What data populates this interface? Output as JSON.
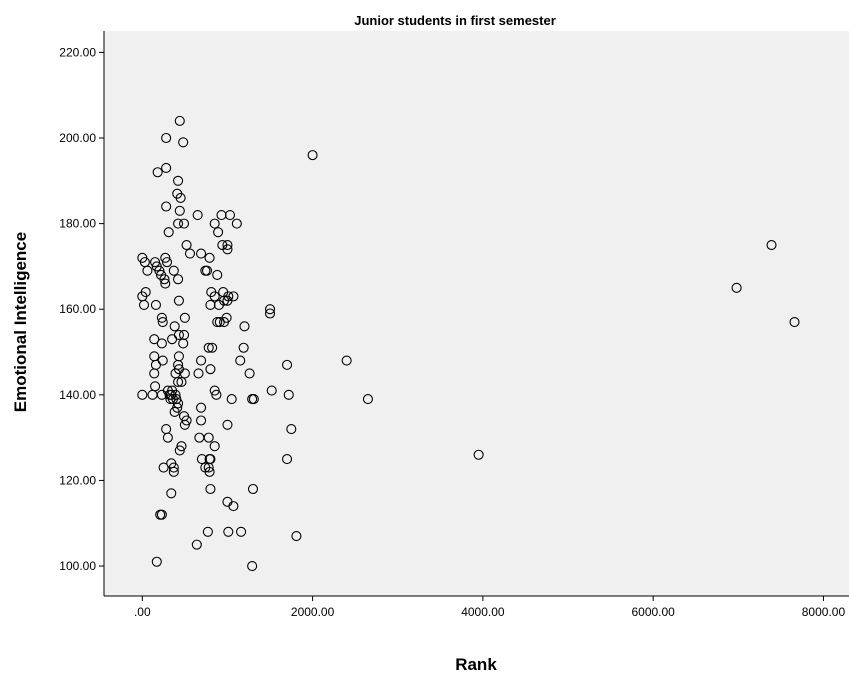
{
  "colors": {
    "plot_background": "#f0f0f0",
    "marker_stroke": "#000000",
    "marker_fill": "none"
  },
  "chart_data": {
    "type": "scatter",
    "title": "Junior students in first semester",
    "xlabel": "Rank",
    "ylabel": "Emotional Intelligence",
    "xlim": [
      -450,
      8300
    ],
    "ylim": [
      93,
      225
    ],
    "x_ticks": [
      {
        "value": 0,
        "label": ".00"
      },
      {
        "value": 2000,
        "label": "2000.00"
      },
      {
        "value": 4000,
        "label": "4000.00"
      },
      {
        "value": 6000,
        "label": "6000.00"
      },
      {
        "value": 8000,
        "label": "8000.00"
      }
    ],
    "y_ticks": [
      {
        "value": 100,
        "label": "100.00"
      },
      {
        "value": 120,
        "label": "120.00"
      },
      {
        "value": 140,
        "label": "140.00"
      },
      {
        "value": 160,
        "label": "160.00"
      },
      {
        "value": 180,
        "label": "180.00"
      },
      {
        "value": 200,
        "label": "200.00"
      },
      {
        "value": 220,
        "label": "220.00"
      }
    ],
    "grid": false,
    "legend": "none",
    "marker": "open-circle",
    "points": [
      [
        440,
        204
      ],
      [
        280,
        200
      ],
      [
        480,
        199
      ],
      [
        2000,
        196
      ],
      [
        280,
        193
      ],
      [
        180,
        192
      ],
      [
        420,
        190
      ],
      [
        410,
        187
      ],
      [
        450,
        186
      ],
      [
        280,
        184
      ],
      [
        440,
        183
      ],
      [
        650,
        182
      ],
      [
        930,
        182
      ],
      [
        1030,
        182
      ],
      [
        420,
        180
      ],
      [
        490,
        180
      ],
      [
        850,
        180
      ],
      [
        1110,
        180
      ],
      [
        310,
        178
      ],
      [
        890,
        178
      ],
      [
        520,
        175
      ],
      [
        940,
        175
      ],
      [
        1000,
        175
      ],
      [
        1000,
        174
      ],
      [
        560,
        173
      ],
      [
        690,
        173
      ],
      [
        0,
        172
      ],
      [
        270,
        172
      ],
      [
        790,
        172
      ],
      [
        30,
        171
      ],
      [
        150,
        171
      ],
      [
        290,
        171
      ],
      [
        170,
        170
      ],
      [
        60,
        169
      ],
      [
        200,
        169
      ],
      [
        370,
        169
      ],
      [
        740,
        169
      ],
      [
        760,
        169
      ],
      [
        220,
        168
      ],
      [
        880,
        168
      ],
      [
        260,
        167
      ],
      [
        420,
        167
      ],
      [
        270,
        166
      ],
      [
        40,
        164
      ],
      [
        810,
        164
      ],
      [
        950,
        164
      ],
      [
        0,
        163
      ],
      [
        850,
        163
      ],
      [
        1010,
        163
      ],
      [
        1070,
        163
      ],
      [
        430,
        162
      ],
      [
        960,
        162
      ],
      [
        1000,
        162
      ],
      [
        1500,
        160
      ],
      [
        20,
        161
      ],
      [
        160,
        161
      ],
      [
        800,
        161
      ],
      [
        900,
        161
      ],
      [
        1500,
        159
      ],
      [
        230,
        158
      ],
      [
        500,
        158
      ],
      [
        990,
        158
      ],
      [
        240,
        157
      ],
      [
        880,
        157
      ],
      [
        910,
        157
      ],
      [
        960,
        157
      ],
      [
        7660,
        157
      ],
      [
        380,
        156
      ],
      [
        1200,
        156
      ],
      [
        430,
        154
      ],
      [
        490,
        154
      ],
      [
        140,
        153
      ],
      [
        350,
        153
      ],
      [
        230,
        152
      ],
      [
        480,
        152
      ],
      [
        780,
        151
      ],
      [
        820,
        151
      ],
      [
        1190,
        151
      ],
      [
        140,
        149
      ],
      [
        430,
        149
      ],
      [
        240,
        148
      ],
      [
        690,
        148
      ],
      [
        1150,
        148
      ],
      [
        2400,
        148
      ],
      [
        160,
        147
      ],
      [
        420,
        147
      ],
      [
        1700,
        147
      ],
      [
        430,
        146
      ],
      [
        800,
        146
      ],
      [
        140,
        145
      ],
      [
        390,
        145
      ],
      [
        500,
        145
      ],
      [
        660,
        145
      ],
      [
        1260,
        145
      ],
      [
        420,
        143
      ],
      [
        460,
        143
      ],
      [
        150,
        142
      ],
      [
        300,
        141
      ],
      [
        350,
        141
      ],
      [
        850,
        141
      ],
      [
        1520,
        141
      ],
      [
        0,
        140
      ],
      [
        120,
        140
      ],
      [
        230,
        140
      ],
      [
        320,
        140
      ],
      [
        340,
        140
      ],
      [
        390,
        140
      ],
      [
        870,
        140
      ],
      [
        1720,
        140
      ],
      [
        330,
        139
      ],
      [
        360,
        139
      ],
      [
        400,
        139
      ],
      [
        1050,
        139
      ],
      [
        1290,
        139
      ],
      [
        1310,
        139
      ],
      [
        2650,
        139
      ],
      [
        420,
        138
      ],
      [
        410,
        137
      ],
      [
        690,
        137
      ],
      [
        380,
        136
      ],
      [
        490,
        135
      ],
      [
        520,
        134
      ],
      [
        690,
        134
      ],
      [
        500,
        133
      ],
      [
        1000,
        133
      ],
      [
        280,
        132
      ],
      [
        1750,
        132
      ],
      [
        300,
        130
      ],
      [
        670,
        130
      ],
      [
        780,
        130
      ],
      [
        460,
        128
      ],
      [
        850,
        128
      ],
      [
        440,
        127
      ],
      [
        3950,
        126
      ],
      [
        700,
        125
      ],
      [
        790,
        125
      ],
      [
        800,
        125
      ],
      [
        1700,
        125
      ],
      [
        340,
        124
      ],
      [
        370,
        123
      ],
      [
        250,
        123
      ],
      [
        740,
        123
      ],
      [
        780,
        123
      ],
      [
        790,
        122
      ],
      [
        370,
        122
      ],
      [
        800,
        118
      ],
      [
        1300,
        118
      ],
      [
        340,
        117
      ],
      [
        1000,
        115
      ],
      [
        1070,
        114
      ],
      [
        210,
        112
      ],
      [
        230,
        112
      ],
      [
        770,
        108
      ],
      [
        1010,
        108
      ],
      [
        1160,
        108
      ],
      [
        1810,
        107
      ],
      [
        640,
        105
      ],
      [
        170,
        101
      ],
      [
        1290,
        100
      ],
      [
        6980,
        165
      ],
      [
        7390,
        175
      ]
    ]
  }
}
